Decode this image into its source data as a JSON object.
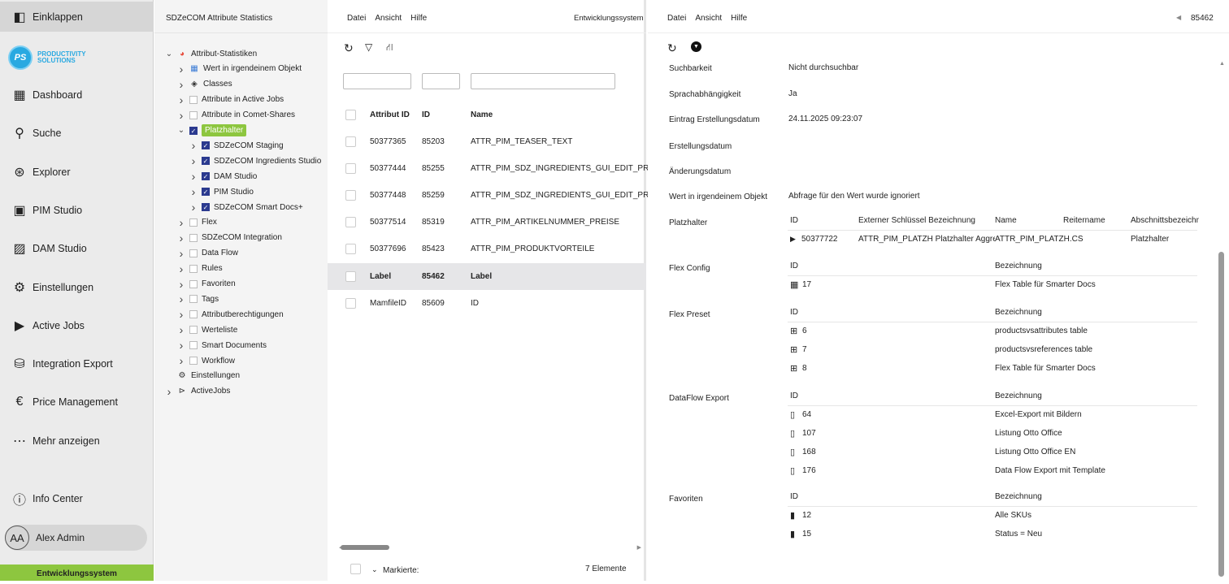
{
  "nav": {
    "collapse": "Einklappen",
    "logo": "PRODUCTIVITY SOLUTIONS",
    "items": [
      {
        "label": "Dashboard",
        "icon": "dashboard-icon"
      },
      {
        "label": "Suche",
        "icon": "search-icon"
      },
      {
        "label": "Explorer",
        "icon": "explorer-icon"
      },
      {
        "label": "PIM Studio",
        "icon": "pim-icon"
      },
      {
        "label": "DAM Studio",
        "icon": "image-icon"
      },
      {
        "label": "Einstellungen",
        "icon": "gear-icon"
      },
      {
        "label": "Active Jobs",
        "icon": "play-icon"
      },
      {
        "label": "Integration Export",
        "icon": "database-export-icon"
      },
      {
        "label": "Price Management",
        "icon": "euro-icon"
      },
      {
        "label": "Mehr anzeigen",
        "icon": "more-icon"
      }
    ],
    "info_center": "Info Center",
    "user_initials": "AA",
    "user_name": "Alex Admin",
    "environment": "Entwicklungssystem",
    "env_color": "#8dc63f"
  },
  "tree": {
    "title": "SDZeCOM Attribute Statistics",
    "nodes": [
      {
        "label": "Attribut-Statistiken",
        "level": 0,
        "exp": "down",
        "kind": "chart"
      },
      {
        "label": "Wert in irgendeinem Objekt",
        "level": 1,
        "exp": "right",
        "kind": "table"
      },
      {
        "label": "Classes",
        "level": 1,
        "exp": "right",
        "kind": "cube"
      },
      {
        "label": "Attribute in Active Jobs",
        "level": 1,
        "exp": "right",
        "kind": "cb"
      },
      {
        "label": "Attribute in Comet-Shares",
        "level": 1,
        "exp": "right",
        "kind": "cb"
      },
      {
        "label": "Platzhalter",
        "level": 1,
        "exp": "down",
        "kind": "cbon",
        "highlight": true
      },
      {
        "label": "SDZeCOM Staging",
        "level": 2,
        "exp": "right",
        "kind": "cbon"
      },
      {
        "label": "SDZeCOM Ingredients Studio",
        "level": 2,
        "exp": "right",
        "kind": "cbon"
      },
      {
        "label": "DAM Studio",
        "level": 2,
        "exp": "right",
        "kind": "cbon"
      },
      {
        "label": "PIM Studio",
        "level": 2,
        "exp": "right",
        "kind": "cbon"
      },
      {
        "label": "SDZeCOM Smart Docs+",
        "level": 2,
        "exp": "right",
        "kind": "cbon"
      },
      {
        "label": "Flex",
        "level": 1,
        "exp": "right",
        "kind": "cb"
      },
      {
        "label": "SDZeCOM Integration",
        "level": 1,
        "exp": "right",
        "kind": "cb"
      },
      {
        "label": "Data Flow",
        "level": 1,
        "exp": "right",
        "kind": "cb"
      },
      {
        "label": "Rules",
        "level": 1,
        "exp": "right",
        "kind": "cb"
      },
      {
        "label": "Favoriten",
        "level": 1,
        "exp": "right",
        "kind": "cb"
      },
      {
        "label": "Tags",
        "level": 1,
        "exp": "right",
        "kind": "cb"
      },
      {
        "label": "Attributberechtigungen",
        "level": 1,
        "exp": "right",
        "kind": "cb"
      },
      {
        "label": "Werteliste",
        "level": 1,
        "exp": "right",
        "kind": "cb"
      },
      {
        "label": "Smart Documents",
        "level": 1,
        "exp": "right",
        "kind": "cb"
      },
      {
        "label": "Workflow",
        "level": 1,
        "exp": "right",
        "kind": "cb"
      },
      {
        "label": "Einstellungen",
        "level": 0,
        "exp": "none",
        "kind": "gear"
      },
      {
        "label": "ActiveJobs",
        "level": 0,
        "exp": "right",
        "kind": "play"
      }
    ],
    "highlight_color": "#8dc63f"
  },
  "list": {
    "menu": [
      "Datei",
      "Ansicht",
      "Hilfe"
    ],
    "env": "Entwicklungssystem",
    "columns": [
      "Attribut ID",
      "ID",
      "Name"
    ],
    "rows": [
      {
        "attr_id": "50377365",
        "id": "85203",
        "name": "ATTR_PIM_TEASER_TEXT"
      },
      {
        "attr_id": "50377444",
        "id": "85255",
        "name": "ATTR_PIM_SDZ_INGREDIENTS_GUI_EDIT_PRO..."
      },
      {
        "attr_id": "50377448",
        "id": "85259",
        "name": "ATTR_PIM_SDZ_INGREDIENTS_GUI_EDIT_PRO..."
      },
      {
        "attr_id": "50377514",
        "id": "85319",
        "name": "ATTR_PIM_ARTIKELNUMMER_PREISE"
      },
      {
        "attr_id": "50377696",
        "id": "85423",
        "name": "ATTR_PIM_PRODUKTVORTEILE"
      },
      {
        "attr_id": "Label",
        "id": "85462",
        "name": "Label",
        "selected": true
      },
      {
        "attr_id": "MamfileID",
        "id": "85609",
        "name": "ID"
      }
    ],
    "marked_label": "Markierte:",
    "count": "7 Elemente"
  },
  "detail": {
    "menu": [
      "Datei",
      "Ansicht",
      "Hilfe"
    ],
    "record_id": "85462",
    "fields": [
      {
        "label": "Suchbarkeit",
        "value": "Nicht durchsuchbar"
      },
      {
        "label": "Sprachabhängigkeit",
        "value": "Ja"
      },
      {
        "label": "Eintrag Erstellungsdatum",
        "value": "24.11.2025 09:23:07"
      },
      {
        "label": "Erstellungsdatum",
        "value": ""
      },
      {
        "label": "Änderungsdatum",
        "value": ""
      },
      {
        "label": "Wert in irgendeinem Objekt",
        "value": "Abfrage für den Wert wurde ignoriert"
      }
    ],
    "platzhalter": {
      "label": "Platzhalter",
      "columns": [
        "ID",
        "Externer Schlüssel Bezeichnung",
        "Name",
        "Reitername",
        "Abschnittsbezeichnung"
      ],
      "rows": [
        [
          "50377722",
          "ATTR_PIM_PLATZH Platzhalter Aggreg",
          "ATTR_PIM_PLATZH.CS",
          "",
          "Platzhalter"
        ]
      ]
    },
    "sections": [
      {
        "label": "Flex Config",
        "icon": "table-icon",
        "columns": [
          "ID",
          "Bezeichnung"
        ],
        "rows": [
          [
            "17",
            "Flex Table für Smarter Docs"
          ]
        ]
      },
      {
        "label": "Flex Preset",
        "icon": "preset-icon",
        "columns": [
          "ID",
          "Bezeichnung"
        ],
        "rows": [
          [
            "6",
            "productsvsattributes table"
          ],
          [
            "7",
            "productsvsreferences table"
          ],
          [
            "8",
            "Flex Table für Smarter Docs"
          ]
        ]
      },
      {
        "label": "DataFlow Export",
        "icon": "document-icon",
        "columns": [
          "ID",
          "Bezeichnung"
        ],
        "rows": [
          [
            "64",
            "Excel-Export mit Bildern"
          ],
          [
            "107",
            "Listung Otto Office"
          ],
          [
            "168",
            "Listung Otto Office EN"
          ],
          [
            "176",
            "Data Flow Export mit Template"
          ]
        ]
      },
      {
        "label": "Favoriten",
        "icon": "bookmark-icon",
        "columns": [
          "ID",
          "Bezeichnung"
        ],
        "rows": [
          [
            "12",
            "Alle SKUs"
          ],
          [
            "15",
            "Status = Neu"
          ]
        ]
      }
    ]
  }
}
